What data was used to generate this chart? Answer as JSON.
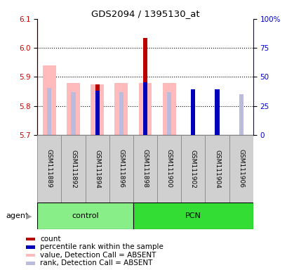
{
  "title": "GDS2094 / 1395130_at",
  "samples": [
    "GSM111889",
    "GSM111892",
    "GSM111894",
    "GSM111896",
    "GSM111898",
    "GSM111900",
    "GSM111902",
    "GSM111904",
    "GSM111906"
  ],
  "groups": [
    {
      "label": "control",
      "indices": [
        0,
        1,
        2,
        3
      ],
      "color": "#88ee88"
    },
    {
      "label": "PCN",
      "indices": [
        4,
        5,
        6,
        7,
        8
      ],
      "color": "#33dd33"
    }
  ],
  "ylim_left": [
    5.7,
    6.1
  ],
  "ylim_right": [
    0,
    100
  ],
  "yticks_left": [
    5.7,
    5.8,
    5.9,
    6.0,
    6.1
  ],
  "yticks_right": [
    0,
    25,
    50,
    75,
    100
  ],
  "ytick_labels_right": [
    "0",
    "25",
    "50",
    "75",
    "100%"
  ],
  "bar_bottom": 5.7,
  "pink_tops": [
    5.94,
    5.88,
    5.875,
    5.88,
    5.88,
    5.88,
    null,
    null,
    null
  ],
  "red_tops": [
    null,
    null,
    5.875,
    null,
    6.035,
    null,
    5.845,
    5.845,
    null
  ],
  "lightblue_tops": [
    5.862,
    5.848,
    null,
    5.848,
    null,
    5.848,
    null,
    null,
    5.84
  ],
  "blue_tops": [
    null,
    null,
    5.852,
    null,
    5.882,
    null,
    5.858,
    5.858,
    null
  ],
  "red_color": "#bb0000",
  "pink_color": "#ffbbbb",
  "blue_color": "#0000bb",
  "lightblue_color": "#bbbbdd",
  "legend_items": [
    {
      "color": "#bb0000",
      "label": "count"
    },
    {
      "color": "#0000bb",
      "label": "percentile rank within the sample"
    },
    {
      "color": "#ffbbbb",
      "label": "value, Detection Call = ABSENT"
    },
    {
      "color": "#bbbbdd",
      "label": "rank, Detection Call = ABSENT"
    }
  ],
  "bg_color": "#ffffff",
  "left_color": "#cc0000",
  "right_color": "#0000cc",
  "gray_box": "#d0d0d0",
  "gray_border": "#888888"
}
